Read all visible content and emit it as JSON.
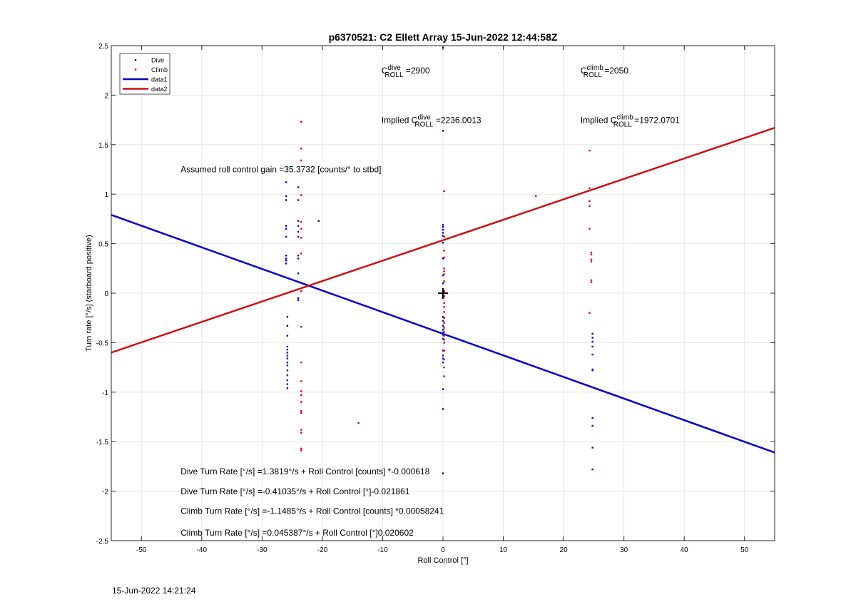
{
  "chart_data": {
    "type": "scatter",
    "title": "p6370521: C2 Ellett Array 15-Jun-2022 12:44:58Z",
    "xlabel": "Roll Control [°]",
    "ylabel": "Turn rate [°/s] (starboard positive)",
    "xlim": [
      -55,
      55
    ],
    "ylim": [
      -2.5,
      2.5
    ],
    "xticks": [
      -50,
      -40,
      -30,
      -20,
      -10,
      0,
      10,
      20,
      30,
      40,
      50
    ],
    "yticks": [
      -2.5,
      -2,
      -1.5,
      -1,
      -0.5,
      0,
      0.5,
      1,
      1.5,
      2,
      2.5
    ],
    "grid": true,
    "legend_position": "top-left",
    "legend": [
      {
        "label": "Dive",
        "kind": "marker",
        "color": "#0000cc"
      },
      {
        "label": "Climb",
        "kind": "marker",
        "color": "#dd0000"
      },
      {
        "label": "data1",
        "kind": "line",
        "color": "#0000cc"
      },
      {
        "label": "data2",
        "kind": "line",
        "color": "#cc1111"
      }
    ],
    "series": [
      {
        "name": "Dive",
        "color": "#0000cc",
        "points": [
          [
            -26.0,
            1.12
          ],
          [
            -26.0,
            0.98
          ],
          [
            -26.0,
            0.94
          ],
          [
            -26.0,
            0.68
          ],
          [
            -26.0,
            0.65
          ],
          [
            -26.0,
            0.57
          ],
          [
            -26.0,
            0.38
          ],
          [
            -26.0,
            0.35
          ],
          [
            -26.0,
            0.33
          ],
          [
            -26.0,
            0.3
          ],
          [
            -25.8,
            -0.24
          ],
          [
            -25.8,
            -0.33
          ],
          [
            -25.8,
            -0.43
          ],
          [
            -25.8,
            -0.54
          ],
          [
            -25.8,
            -0.57
          ],
          [
            -25.8,
            -0.6
          ],
          [
            -25.8,
            -0.63
          ],
          [
            -25.8,
            -0.66
          ],
          [
            -25.8,
            -0.7
          ],
          [
            -25.8,
            -0.73
          ],
          [
            -25.8,
            -0.78
          ],
          [
            -25.8,
            -0.83
          ],
          [
            -25.8,
            -0.88
          ],
          [
            -25.8,
            -0.92
          ],
          [
            -25.8,
            -0.96
          ],
          [
            -24.0,
            1.07
          ],
          [
            -24.0,
            0.94
          ],
          [
            -24.0,
            0.73
          ],
          [
            -24.0,
            0.68
          ],
          [
            -24.0,
            0.62
          ],
          [
            -24.0,
            0.57
          ],
          [
            -24.0,
            0.38
          ],
          [
            -24.0,
            0.35
          ],
          [
            -24.0,
            0.2
          ],
          [
            -24.0,
            -0.05
          ],
          [
            -24.0,
            -0.07
          ],
          [
            -20.6,
            0.73
          ],
          [
            0.0,
            2.48
          ],
          [
            0.0,
            1.64
          ],
          [
            0.0,
            0.69
          ],
          [
            0.0,
            0.67
          ],
          [
            0.0,
            0.64
          ],
          [
            0.0,
            0.61
          ],
          [
            0.0,
            0.58
          ],
          [
            0.0,
            0.51
          ],
          [
            0.0,
            0.35
          ],
          [
            0.0,
            0.18
          ],
          [
            0.0,
            0.1
          ],
          [
            0.0,
            -0.05
          ],
          [
            0.0,
            -0.24
          ],
          [
            0.0,
            -0.28
          ],
          [
            0.0,
            -0.33
          ],
          [
            0.0,
            -0.37
          ],
          [
            0.0,
            -0.4
          ],
          [
            0.0,
            -0.42
          ],
          [
            0.0,
            -0.46
          ],
          [
            0.0,
            -0.58
          ],
          [
            0.0,
            -0.63
          ],
          [
            0.0,
            -0.66
          ],
          [
            0.0,
            -0.7
          ],
          [
            0.0,
            -0.97
          ],
          [
            0.0,
            -1.17
          ],
          [
            0.0,
            -1.82
          ],
          [
            24.8,
            -0.41
          ],
          [
            24.8,
            -0.45
          ],
          [
            24.8,
            -0.49
          ],
          [
            24.8,
            -0.54
          ],
          [
            24.8,
            -0.62
          ],
          [
            24.8,
            -0.77
          ],
          [
            24.8,
            -0.78
          ],
          [
            24.8,
            -1.26
          ],
          [
            24.8,
            -1.34
          ],
          [
            24.8,
            -1.56
          ],
          [
            24.8,
            -1.78
          ]
        ]
      },
      {
        "name": "Climb",
        "color": "#dd0000",
        "points": [
          [
            -23.5,
            1.73
          ],
          [
            -23.5,
            1.46
          ],
          [
            -23.5,
            1.34
          ],
          [
            -23.5,
            0.99
          ],
          [
            -23.5,
            0.72
          ],
          [
            -23.5,
            0.65
          ],
          [
            -23.5,
            0.56
          ],
          [
            -23.5,
            0.4
          ],
          [
            -23.5,
            0.02
          ],
          [
            -23.5,
            -0.34
          ],
          [
            -23.5,
            -0.7
          ],
          [
            -23.5,
            -0.89
          ],
          [
            -23.5,
            -0.99
          ],
          [
            -23.5,
            -1.03
          ],
          [
            -23.5,
            -1.1
          ],
          [
            -23.5,
            -1.19
          ],
          [
            -23.5,
            -1.21
          ],
          [
            -23.5,
            -1.38
          ],
          [
            -23.5,
            -1.41
          ],
          [
            -23.5,
            -1.57
          ],
          [
            -23.5,
            -1.59
          ],
          [
            -14.0,
            -1.31
          ],
          [
            0.2,
            1.03
          ],
          [
            0.2,
            0.57
          ],
          [
            0.2,
            0.43
          ],
          [
            0.2,
            0.36
          ],
          [
            0.2,
            0.25
          ],
          [
            0.2,
            0.22
          ],
          [
            0.2,
            0.19
          ],
          [
            0.2,
            0.12
          ],
          [
            0.2,
            0.02
          ],
          [
            0.2,
            -0.03
          ],
          [
            0.2,
            -0.1
          ],
          [
            0.2,
            -0.14
          ],
          [
            0.2,
            -0.19
          ],
          [
            0.2,
            -0.25
          ],
          [
            0.2,
            -0.3
          ],
          [
            0.2,
            -0.35
          ],
          [
            0.2,
            -0.39
          ],
          [
            0.2,
            -0.43
          ],
          [
            0.2,
            -0.47
          ],
          [
            0.2,
            -0.5
          ],
          [
            0.2,
            -0.58
          ],
          [
            0.2,
            -0.67
          ],
          [
            0.2,
            -0.75
          ],
          [
            0.2,
            -0.84
          ],
          [
            15.4,
            0.98
          ],
          [
            24.3,
            1.44
          ],
          [
            24.3,
            1.06
          ],
          [
            24.3,
            0.93
          ],
          [
            24.3,
            0.88
          ],
          [
            24.3,
            0.65
          ],
          [
            24.3,
            -0.2
          ],
          [
            24.6,
            0.41
          ],
          [
            24.6,
            0.39
          ],
          [
            24.6,
            0.34
          ],
          [
            24.6,
            0.32
          ],
          [
            24.6,
            0.13
          ],
          [
            24.6,
            0.11
          ]
        ]
      },
      {
        "name": "data1",
        "color": "#0000cc",
        "kind": "line",
        "points": [
          [
            -55,
            0.79
          ],
          [
            55,
            -1.61
          ]
        ]
      },
      {
        "name": "data2",
        "color": "#cc1111",
        "kind": "line",
        "points": [
          [
            -55,
            -0.6
          ],
          [
            55,
            1.67
          ]
        ]
      }
    ],
    "marker": {
      "x": 0,
      "y": 0,
      "symbol": "+"
    },
    "annotations": [
      {
        "id": "cdive",
        "prefix": "C",
        "sup": "dive",
        "sub": "ROLL",
        "suffix": " =2900",
        "x": -10.2,
        "y": 2.22
      },
      {
        "id": "cclimb",
        "prefix": "C",
        "sup": "climb",
        "sub": "ROLL",
        "suffix": " =2050",
        "x": 22.8,
        "y": 2.22
      },
      {
        "id": "impdive",
        "prefix": "Implied C",
        "sup": "dive",
        "sub": "ROLL",
        "suffix": " =2236.0013",
        "x": -10.2,
        "y": 1.72
      },
      {
        "id": "impclimb",
        "prefix": "Implied C",
        "sup": "climb",
        "sub": "ROLL",
        "suffix": " =1972.0701",
        "x": 22.8,
        "y": 1.72
      }
    ],
    "text_annotations": [
      {
        "text": "Assumed roll control gain =35.3732 [counts/° to stbd]",
        "x": -43.5,
        "y": 1.22
      },
      {
        "text": "Dive Turn Rate [°/s] =1.3819°/s + Roll Control [counts] *-0.000618",
        "x": -43.5,
        "y": -1.83
      },
      {
        "text": "Dive Turn Rate [°/s] =-0.41035°/s + Roll Control [°]-0.021861",
        "x": -43.5,
        "y": -2.03
      },
      {
        "text": "Climb Turn Rate [°/s] =-1.1485°/s + Roll Control [counts] *0.00058241",
        "x": -43.5,
        "y": -2.23
      },
      {
        "text": "Climb Turn Rate [°/s] =0.045387°/s + Roll Control [°]0.020602",
        "x": -43.5,
        "y": -2.45
      }
    ]
  },
  "footer": {
    "date": "15-Jun-2022 14:21:24"
  }
}
